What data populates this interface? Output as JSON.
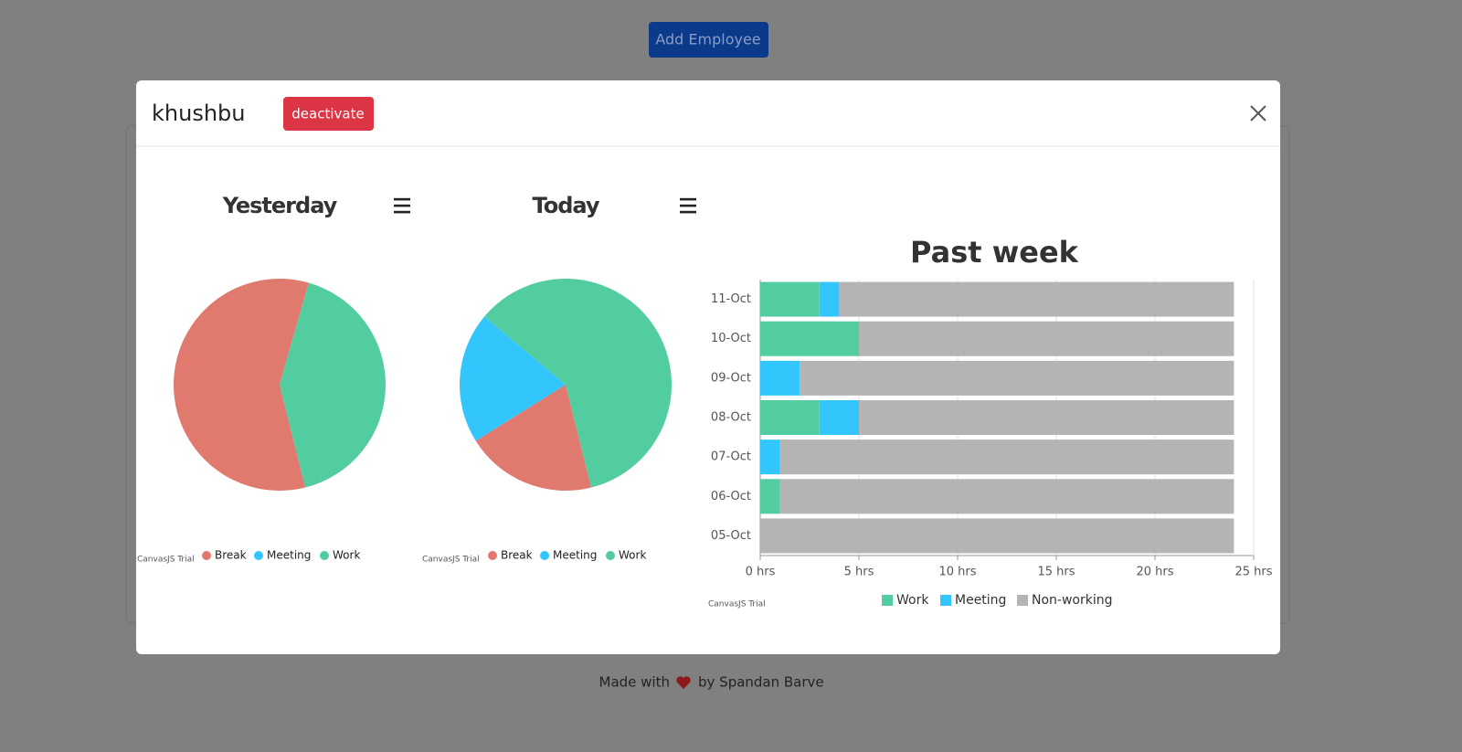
{
  "header": {
    "button": "Add Employee"
  },
  "modal": {
    "title": "khushbu",
    "deactivate_button": "deactivate"
  },
  "chart_data": [
    {
      "type": "pie",
      "title": "Yesterday",
      "categories": [
        "Break",
        "Meeting",
        "Work"
      ],
      "values": [
        7,
        0,
        5
      ],
      "colors": [
        "#e07a6f",
        "#33c6fc",
        "#52cd9f"
      ],
      "credit": "CanvasJS Trial"
    },
    {
      "type": "pie",
      "title": "Today",
      "categories": [
        "Break",
        "Meeting",
        "Work"
      ],
      "values": [
        1,
        1,
        3
      ],
      "colors": [
        "#e07a6f",
        "#33c6fc",
        "#52cd9f"
      ],
      "credit": "CanvasJS Trial"
    },
    {
      "type": "bar",
      "orientation": "horizontal",
      "stacked": true,
      "title": "Past week",
      "categories": [
        "05-Oct",
        "06-Oct",
        "07-Oct",
        "08-Oct",
        "09-Oct",
        "10-Oct",
        "11-Oct"
      ],
      "series": [
        {
          "name": "Work",
          "color": "#52cd9f",
          "values": [
            0,
            1,
            0,
            3,
            0,
            5,
            3
          ]
        },
        {
          "name": "Meeting",
          "color": "#33c6fc",
          "values": [
            0,
            0,
            1,
            2,
            2,
            0,
            1
          ]
        },
        {
          "name": "Non-working",
          "color": "#b4b4b4",
          "values": [
            24,
            23,
            23,
            19,
            22,
            19,
            20
          ]
        }
      ],
      "xlim": [
        0,
        25
      ],
      "xticks": [
        {
          "value": 0,
          "label": "0 hrs"
        },
        {
          "value": 5,
          "label": "5 hrs"
        },
        {
          "value": 10,
          "label": "10 hrs"
        },
        {
          "value": 15,
          "label": "15 hrs"
        },
        {
          "value": 20,
          "label": "20 hrs"
        },
        {
          "value": 25,
          "label": "25 hrs"
        }
      ],
      "grid": true,
      "credit": "CanvasJS Trial"
    }
  ],
  "footer": {
    "text_before": "Made with",
    "text_after": "by Spandan Barve"
  }
}
